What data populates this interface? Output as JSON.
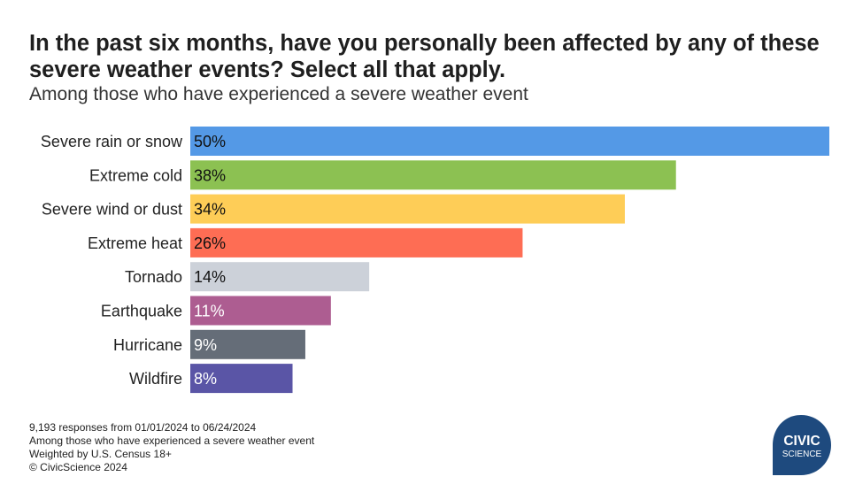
{
  "header": {
    "title": "In the past six months, have you personally been affected by any of these severe weather events? Select all that apply.",
    "subtitle": "Among those who have experienced a severe weather event"
  },
  "chart_data": {
    "type": "bar",
    "orientation": "horizontal",
    "categories": [
      "Severe rain or snow",
      "Extreme cold",
      "Severe wind or dust",
      "Extreme heat",
      "Tornado",
      "Earthquake",
      "Hurricane",
      "Wildfire"
    ],
    "values": [
      50,
      38,
      34,
      26,
      14,
      11,
      9,
      8
    ],
    "value_labels": [
      "50%",
      "38%",
      "34%",
      "26%",
      "14%",
      "11%",
      "9%",
      "8%"
    ],
    "colors": [
      "#5499e6",
      "#8cc152",
      "#fecd57",
      "#fe6d54",
      "#ccd1d9",
      "#ad5d91",
      "#656d78",
      "#5a55a6"
    ],
    "label_colors": [
      "#111111",
      "#111111",
      "#111111",
      "#111111",
      "#111111",
      "#ffffff",
      "#ffffff",
      "#ffffff"
    ],
    "xlim": [
      0,
      50
    ],
    "grid": false,
    "legend": "none"
  },
  "footer": {
    "notes": [
      "9,193 responses from 01/01/2024 to 06/24/2024",
      "Among those who have experienced a severe weather event",
      "Weighted by U.S. Census 18+",
      "© CivicScience 2024"
    ]
  },
  "logo": {
    "line1": "CIVIC",
    "line2": "SCIENCE",
    "color": "#1e4a7e"
  }
}
